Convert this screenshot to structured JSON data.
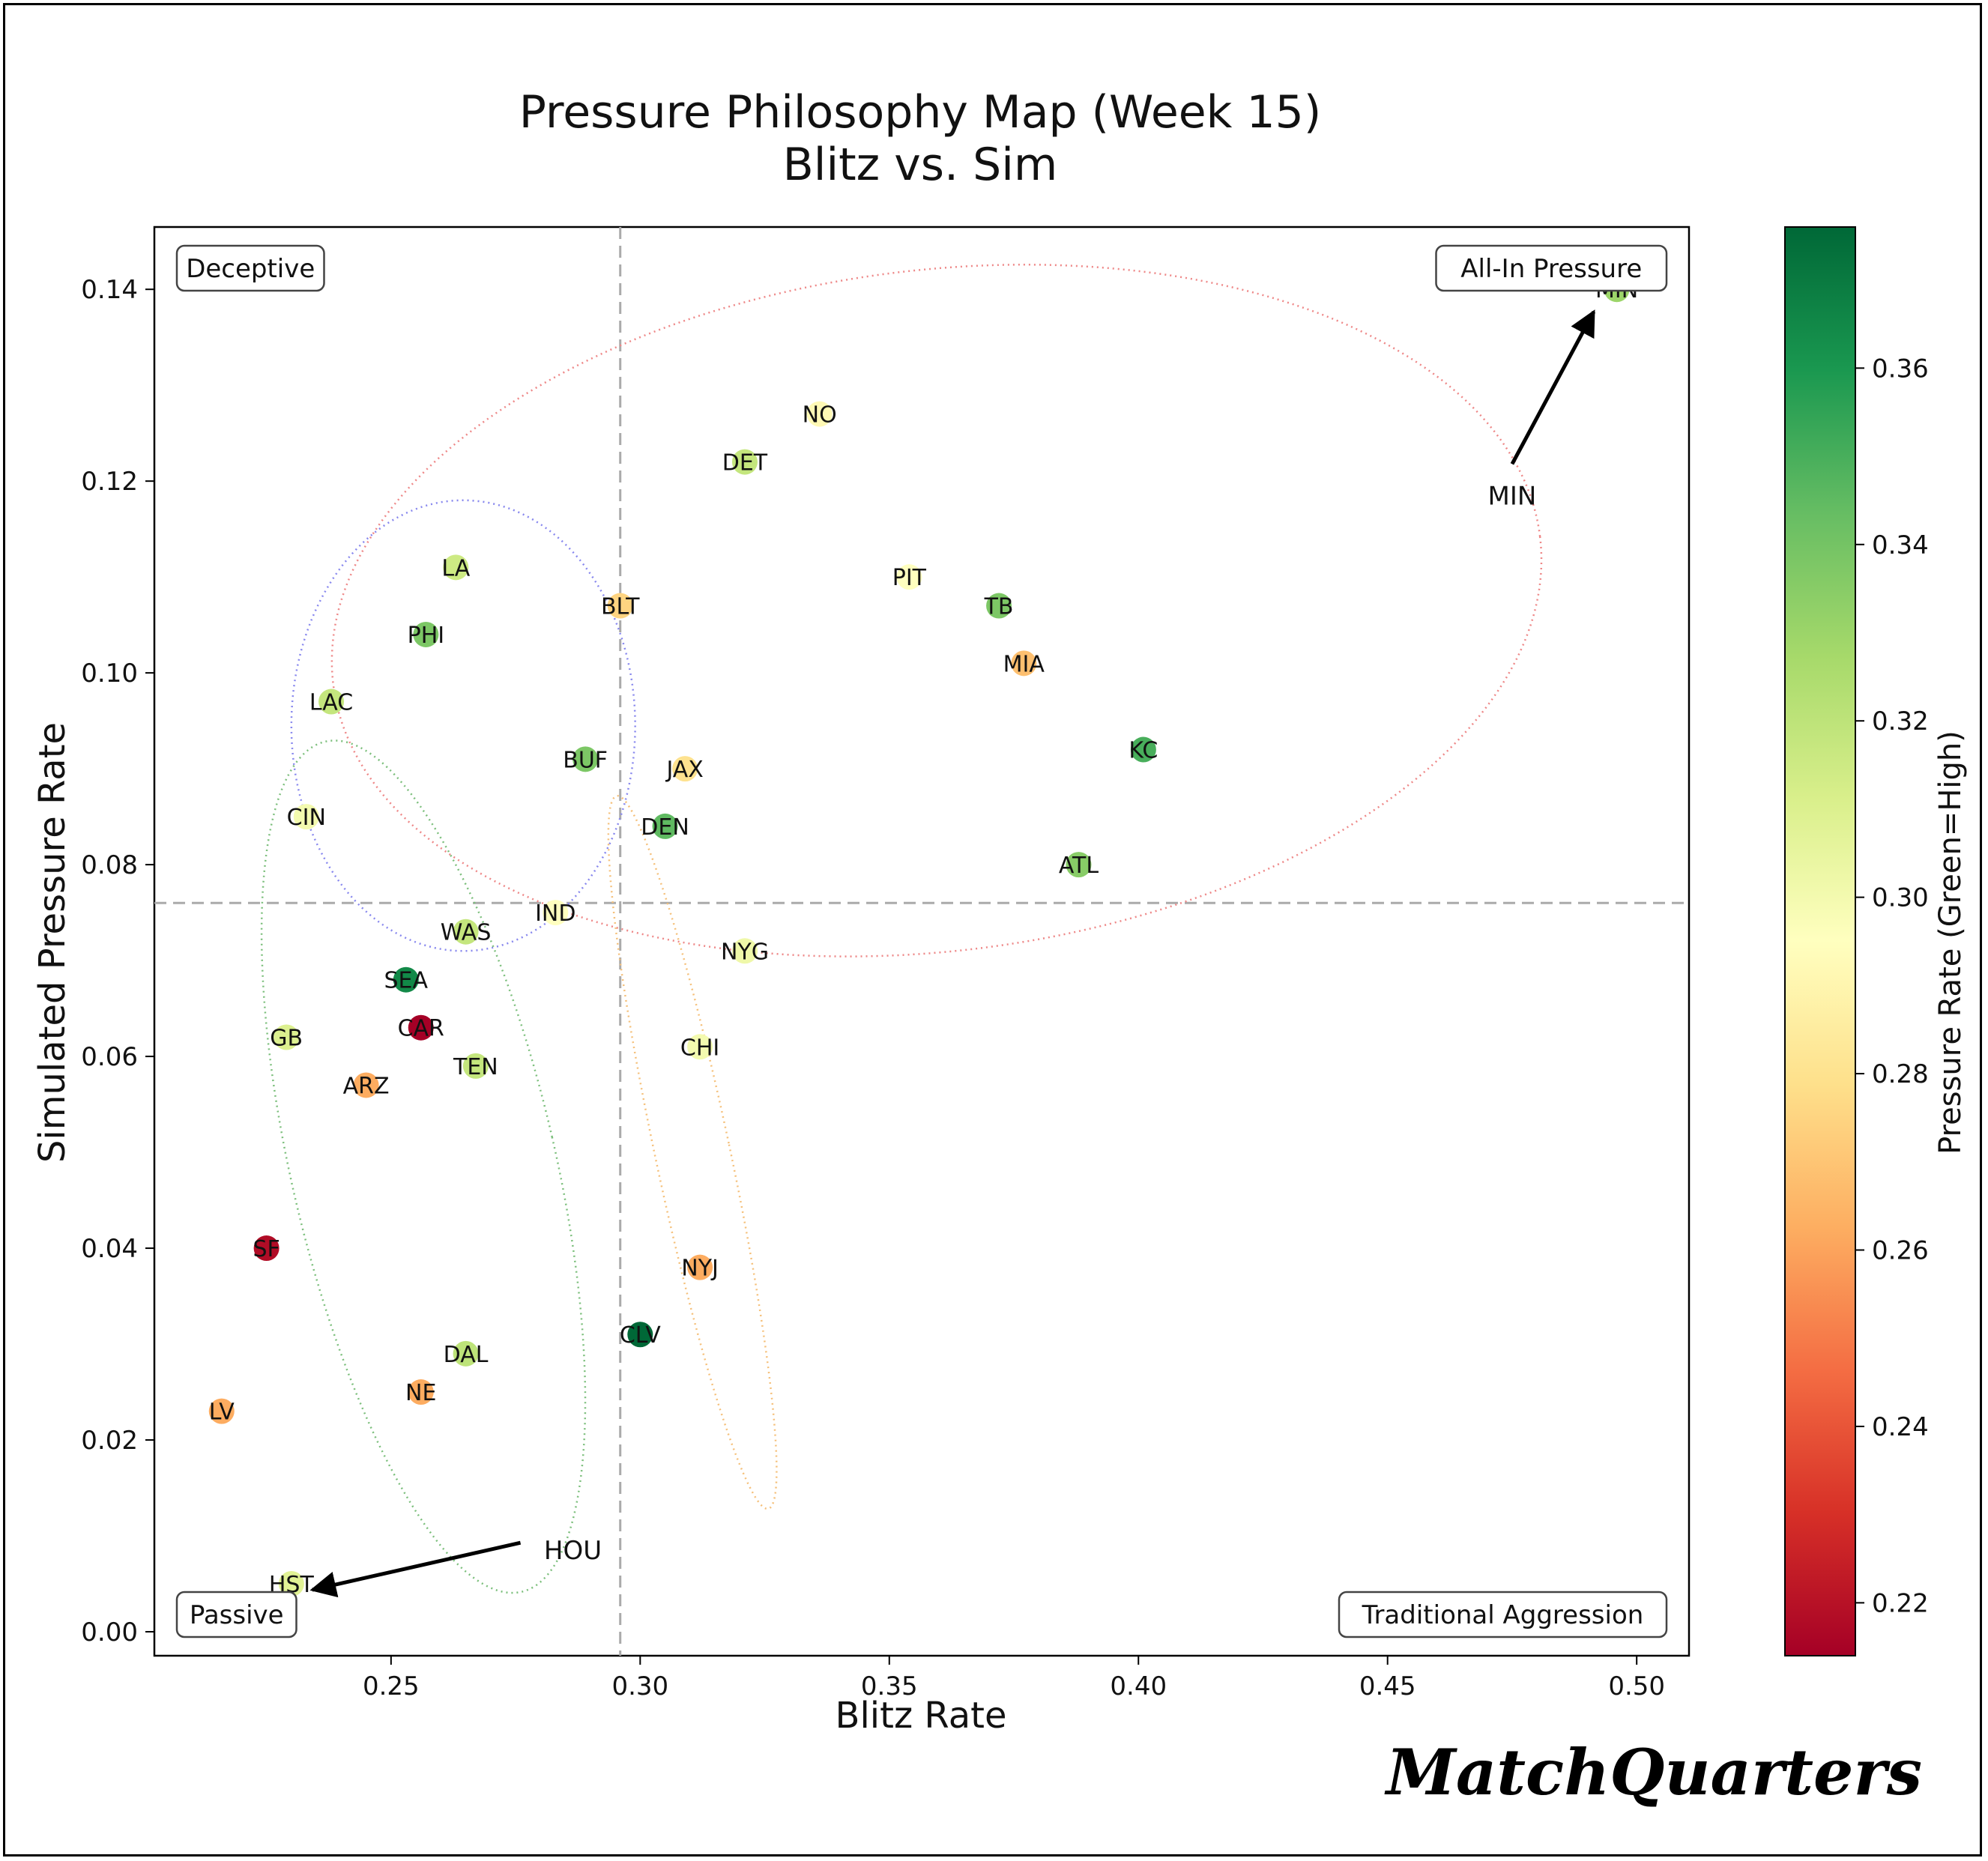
{
  "brand": "MatchQuarters",
  "colors": {
    "frame": "#000000",
    "quadrant_line": "#aaaaaa",
    "ellipse_blue": "#8888ee",
    "ellipse_red": "#ee8888",
    "ellipse_green": "#7cbf7c",
    "ellipse_orange": "#f5c07a"
  },
  "chart_data": {
    "type": "scatter",
    "title_line1": "Pressure Philosophy Map (Week 15)",
    "title_line2": "Blitz vs. Sim",
    "xlabel": "Blitz Rate",
    "ylabel": "Simulated Pressure Rate",
    "xlim": [
      0.2025,
      0.5105
    ],
    "ylim": [
      -0.0025,
      0.1465
    ],
    "xticks": [
      0.25,
      0.3,
      0.35,
      0.4,
      0.45,
      0.5
    ],
    "xtick_labels": [
      "0.25",
      "0.30",
      "0.35",
      "0.40",
      "0.45",
      "0.50"
    ],
    "yticks": [
      0.0,
      0.02,
      0.04,
      0.06,
      0.08,
      0.1,
      0.12,
      0.14
    ],
    "ytick_labels": [
      "0.00",
      "0.02",
      "0.04",
      "0.06",
      "0.08",
      "0.10",
      "0.12",
      "0.14"
    ],
    "colorbar": {
      "label": "Pressure Rate (Green=High)",
      "range": [
        0.214,
        0.376
      ],
      "ticks": [
        0.22,
        0.24,
        0.26,
        0.28,
        0.3,
        0.32,
        0.34,
        0.36
      ],
      "tick_labels": [
        "0.22",
        "0.24",
        "0.26",
        "0.28",
        "0.30",
        "0.32",
        "0.34",
        "0.36"
      ],
      "colormap": "RdYlGn"
    },
    "quadrant_lines": {
      "x": 0.296,
      "y": 0.076
    },
    "quadrant_labels": {
      "top_left": "Deceptive",
      "top_right": "All-In Pressure",
      "bottom_left": "Passive",
      "bottom_right": "Traditional Aggression"
    },
    "points": [
      {
        "team": "MIN",
        "x": 0.496,
        "y": 0.14,
        "c": 0.33
      },
      {
        "team": "NO",
        "x": 0.336,
        "y": 0.127,
        "c": 0.292
      },
      {
        "team": "DET",
        "x": 0.321,
        "y": 0.122,
        "c": 0.318
      },
      {
        "team": "LA",
        "x": 0.263,
        "y": 0.111,
        "c": 0.315
      },
      {
        "team": "PIT",
        "x": 0.354,
        "y": 0.11,
        "c": 0.295
      },
      {
        "team": "BLT",
        "x": 0.296,
        "y": 0.107,
        "c": 0.275
      },
      {
        "team": "TB",
        "x": 0.372,
        "y": 0.107,
        "c": 0.338
      },
      {
        "team": "PHI",
        "x": 0.257,
        "y": 0.104,
        "c": 0.338
      },
      {
        "team": "MIA",
        "x": 0.377,
        "y": 0.101,
        "c": 0.268
      },
      {
        "team": "LAC",
        "x": 0.238,
        "y": 0.097,
        "c": 0.318
      },
      {
        "team": "KC",
        "x": 0.401,
        "y": 0.092,
        "c": 0.35
      },
      {
        "team": "BUF",
        "x": 0.289,
        "y": 0.091,
        "c": 0.338
      },
      {
        "team": "JAX",
        "x": 0.309,
        "y": 0.09,
        "c": 0.28
      },
      {
        "team": "CIN",
        "x": 0.233,
        "y": 0.085,
        "c": 0.3
      },
      {
        "team": "DEN",
        "x": 0.305,
        "y": 0.084,
        "c": 0.345
      },
      {
        "team": "ATL",
        "x": 0.388,
        "y": 0.08,
        "c": 0.335
      },
      {
        "team": "IND",
        "x": 0.283,
        "y": 0.075,
        "c": 0.295
      },
      {
        "team": "WAS",
        "x": 0.265,
        "y": 0.073,
        "c": 0.318
      },
      {
        "team": "NYG",
        "x": 0.321,
        "y": 0.071,
        "c": 0.302
      },
      {
        "team": "SEA",
        "x": 0.253,
        "y": 0.068,
        "c": 0.365
      },
      {
        "team": "CAR",
        "x": 0.256,
        "y": 0.063,
        "c": 0.214
      },
      {
        "team": "GB",
        "x": 0.229,
        "y": 0.062,
        "c": 0.31
      },
      {
        "team": "CHI",
        "x": 0.312,
        "y": 0.061,
        "c": 0.3
      },
      {
        "team": "TEN",
        "x": 0.267,
        "y": 0.059,
        "c": 0.318
      },
      {
        "team": "ARZ",
        "x": 0.245,
        "y": 0.057,
        "c": 0.262
      },
      {
        "team": "SF",
        "x": 0.225,
        "y": 0.04,
        "c": 0.218
      },
      {
        "team": "NYJ",
        "x": 0.312,
        "y": 0.038,
        "c": 0.262
      },
      {
        "team": "CLV",
        "x": 0.3,
        "y": 0.031,
        "c": 0.376
      },
      {
        "team": "DAL",
        "x": 0.265,
        "y": 0.029,
        "c": 0.32
      },
      {
        "team": "NE",
        "x": 0.256,
        "y": 0.025,
        "c": 0.262
      },
      {
        "team": "LV",
        "x": 0.216,
        "y": 0.023,
        "c": 0.262
      },
      {
        "team": "HST",
        "x": 0.23,
        "y": 0.005,
        "c": 0.308
      }
    ],
    "annotations": [
      {
        "text": "MIN",
        "target_team": "MIN",
        "text_at": [
          0.475,
          0.1185
        ]
      },
      {
        "text": "HOU",
        "target_team": "HST",
        "text_at": [
          0.2865,
          0.0085
        ]
      }
    ],
    "ellipses": [
      {
        "group": "blue",
        "cx": 0.2645,
        "cy": 0.0945,
        "rx": 0.0345,
        "ry": 0.0235,
        "angle_deg": 0
      },
      {
        "group": "red",
        "cx": 0.3595,
        "cy": 0.1065,
        "rx": 0.122,
        "ry": 0.0355,
        "angle_deg": -7
      },
      {
        "group": "green",
        "cx": 0.2565,
        "cy": 0.0485,
        "rx": 0.0265,
        "ry": 0.0455,
        "angle_deg": -13
      },
      {
        "group": "orange",
        "cx": 0.3105,
        "cy": 0.05,
        "rx": 0.0075,
        "ry": 0.038,
        "angle_deg": -12
      }
    ]
  }
}
